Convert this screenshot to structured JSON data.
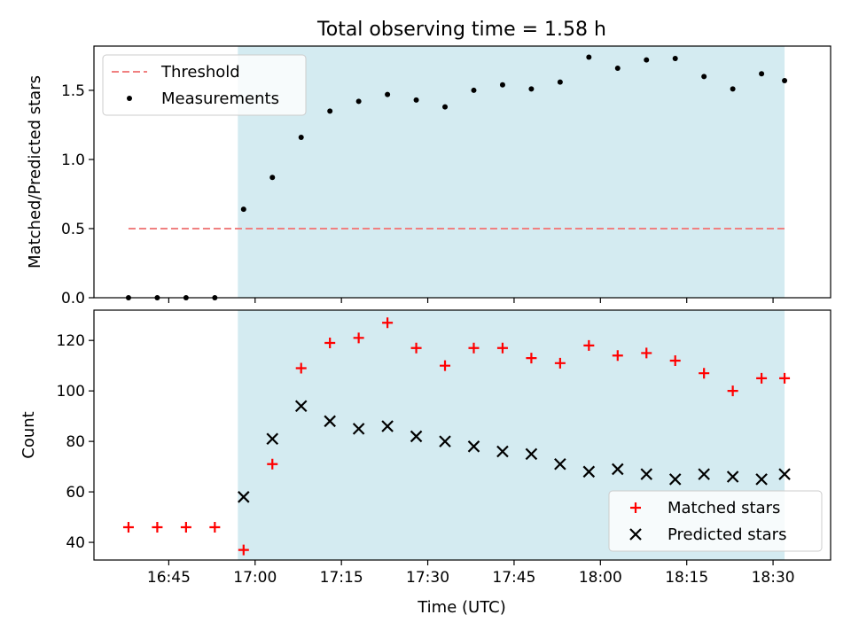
{
  "chart_data": [
    {
      "type": "scatter",
      "title": "Total observing time = 1.58 h",
      "xlabel": "",
      "ylabel": "Matched/Predicted stars",
      "x_unit": "time (UTC)",
      "xlim": [
        "16:32",
        "18:40"
      ],
      "ylim": [
        0.0,
        1.82
      ],
      "yticks": [
        "0.0",
        "0.5",
        "1.0",
        "1.5"
      ],
      "shaded_interval": {
        "from": "16:57",
        "to": "18:32",
        "color": "#d4ebf1"
      },
      "legend": {
        "placement": "top-left",
        "entries": [
          "Threshold",
          "Measurements"
        ]
      },
      "series": [
        {
          "name": "Threshold",
          "style": "dashed-line",
          "color": "#f08080",
          "x": [
            "16:38",
            "18:32"
          ],
          "values": [
            0.5,
            0.5
          ]
        },
        {
          "name": "Measurements",
          "style": "dot",
          "color": "#000000",
          "x": [
            "16:38",
            "16:43",
            "16:48",
            "16:53",
            "16:58",
            "17:03",
            "17:08",
            "17:13",
            "17:18",
            "17:23",
            "17:28",
            "17:33",
            "17:38",
            "17:43",
            "17:48",
            "17:53",
            "17:58",
            "18:03",
            "18:08",
            "18:13",
            "18:18",
            "18:23",
            "18:28",
            "18:32"
          ],
          "values": [
            0.0,
            0.0,
            0.0,
            0.0,
            0.64,
            0.87,
            1.16,
            1.35,
            1.42,
            1.47,
            1.43,
            1.38,
            1.5,
            1.54,
            1.51,
            1.56,
            1.74,
            1.66,
            1.72,
            1.73,
            1.6,
            1.51,
            1.62,
            1.57
          ]
        }
      ]
    },
    {
      "type": "scatter",
      "title": "",
      "xlabel": "Time (UTC)",
      "ylabel": "Count",
      "xlim": [
        "16:32",
        "18:40"
      ],
      "ylim": [
        33,
        132
      ],
      "xticks": [
        "16:45",
        "17:00",
        "17:15",
        "17:30",
        "17:45",
        "18:00",
        "18:15",
        "18:30"
      ],
      "yticks": [
        "40",
        "60",
        "80",
        "100",
        "120"
      ],
      "shaded_interval": {
        "from": "16:57",
        "to": "18:32",
        "color": "#d4ebf1"
      },
      "legend": {
        "placement": "bottom-right",
        "entries": [
          "Matched stars",
          "Predicted stars"
        ]
      },
      "series": [
        {
          "name": "Matched stars",
          "marker": "plus",
          "color": "#ff0000",
          "x": [
            "16:38",
            "16:43",
            "16:48",
            "16:53",
            "16:58",
            "17:03",
            "17:08",
            "17:13",
            "17:18",
            "17:23",
            "17:28",
            "17:33",
            "17:38",
            "17:43",
            "17:48",
            "17:53",
            "17:58",
            "18:03",
            "18:08",
            "18:13",
            "18:18",
            "18:23",
            "18:28",
            "18:32"
          ],
          "values": [
            46,
            46,
            46,
            46,
            37,
            71,
            109,
            119,
            121,
            127,
            117,
            110,
            117,
            117,
            113,
            111,
            118,
            114,
            115,
            112,
            107,
            100,
            105,
            105
          ]
        },
        {
          "name": "Predicted stars",
          "marker": "x",
          "color": "#000000",
          "x": [
            "16:58",
            "17:03",
            "17:08",
            "17:13",
            "17:18",
            "17:23",
            "17:28",
            "17:33",
            "17:38",
            "17:43",
            "17:48",
            "17:53",
            "17:58",
            "18:03",
            "18:08",
            "18:13",
            "18:18",
            "18:23",
            "18:28",
            "18:32"
          ],
          "values": [
            58,
            81,
            94,
            88,
            85,
            86,
            82,
            80,
            78,
            76,
            75,
            71,
            68,
            69,
            67,
            65,
            67,
            66,
            65,
            67
          ]
        }
      ]
    }
  ]
}
